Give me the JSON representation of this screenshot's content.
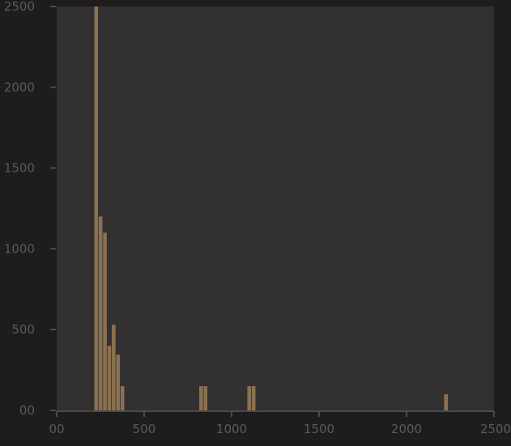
{
  "chart_data": {
    "type": "bar",
    "title": "",
    "xlabel": "",
    "ylabel": "",
    "xlim": [
      0,
      2500
    ],
    "ylim": [
      0,
      2500
    ],
    "x_ticks": [
      0,
      500,
      1000,
      1500,
      2000,
      2500
    ],
    "x_tick_labels": [
      "00",
      "500",
      "1000",
      "1500",
      "2000",
      "2500"
    ],
    "y_ticks": [
      0,
      500,
      1000,
      1500,
      2000,
      2500
    ],
    "y_tick_labels": [
      "00",
      "500",
      "1000",
      "1500",
      "2000",
      "2500"
    ],
    "bin_width": 25,
    "bars": [
      {
        "x": 215,
        "value": 2500
      },
      {
        "x": 240,
        "value": 1200
      },
      {
        "x": 265,
        "value": 1100
      },
      {
        "x": 290,
        "value": 400
      },
      {
        "x": 315,
        "value": 530
      },
      {
        "x": 340,
        "value": 345
      },
      {
        "x": 365,
        "value": 150
      },
      {
        "x": 815,
        "value": 150
      },
      {
        "x": 840,
        "value": 150
      },
      {
        "x": 1090,
        "value": 150
      },
      {
        "x": 1115,
        "value": 150
      },
      {
        "x": 2215,
        "value": 100
      }
    ],
    "grid": false,
    "colors": {
      "background": "#1e1d1d",
      "plot_area": "#323031",
      "bar": "#8b7152",
      "axis": "#5c5a58"
    }
  }
}
